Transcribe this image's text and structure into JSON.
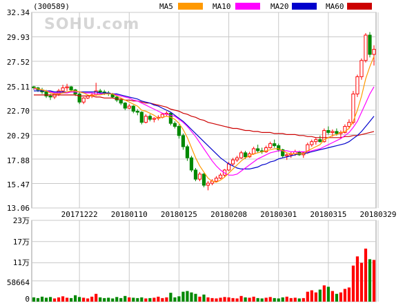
{
  "stock_code": "(300589)",
  "watermark": "SOHU.com",
  "colors": {
    "up": "#ff0000",
    "down": "#008800",
    "grid": "#c8c8c8",
    "frame": "#9a9a9a"
  },
  "chart_data": {
    "type": "candlestick",
    "price_axis": {
      "ticks": [
        "32.34",
        "29.93",
        "27.52",
        "25.11",
        "22.70",
        "20.29",
        "17.88",
        "15.47",
        "13.06"
      ],
      "ylim": [
        13.06,
        32.34
      ]
    },
    "volume_axis": {
      "ticks": [
        "23万",
        "17万",
        "11万",
        "58664",
        "0"
      ],
      "tick_values": [
        230000,
        170000,
        110000,
        58664,
        0
      ],
      "ylim": [
        0,
        230000
      ]
    },
    "date_labels": [
      "20171222",
      "20180110",
      "20180125",
      "20180208",
      "20180301",
      "20180315",
      "20180329"
    ],
    "date_label_index": [
      11,
      23,
      35,
      47,
      59,
      71,
      83
    ],
    "legend": [
      {
        "name": "MA5",
        "color": "#ff9900"
      },
      {
        "name": "MA10",
        "color": "#ff00ff"
      },
      {
        "name": "MA20",
        "color": "#0000cc"
      },
      {
        "name": "MA60",
        "color": "#cc0000"
      }
    ],
    "ohlc": [
      [
        25.0,
        25.1,
        24.7,
        24.9
      ],
      [
        24.9,
        25.0,
        24.5,
        24.7
      ],
      [
        24.7,
        24.9,
        24.3,
        24.5
      ],
      [
        24.5,
        24.7,
        23.9,
        24.1
      ],
      [
        24.1,
        24.3,
        23.7,
        24.0
      ],
      [
        24.0,
        24.4,
        23.8,
        24.3
      ],
      [
        24.3,
        24.8,
        24.1,
        24.6
      ],
      [
        24.6,
        25.2,
        24.4,
        24.9
      ],
      [
        24.9,
        25.3,
        24.6,
        25.0
      ],
      [
        25.0,
        25.1,
        24.5,
        24.7
      ],
      [
        24.7,
        24.8,
        24.1,
        24.3
      ],
      [
        24.3,
        24.5,
        23.3,
        23.5
      ],
      [
        23.5,
        24.0,
        23.3,
        23.9
      ],
      [
        23.9,
        24.2,
        23.8,
        24.1
      ],
      [
        24.1,
        24.4,
        23.9,
        24.2
      ],
      [
        24.2,
        25.4,
        24.1,
        24.6
      ],
      [
        24.6,
        24.8,
        24.4,
        24.5
      ],
      [
        24.5,
        24.7,
        24.2,
        24.4
      ],
      [
        24.4,
        24.6,
        24.1,
        24.3
      ],
      [
        24.3,
        24.4,
        23.9,
        24.0
      ],
      [
        24.0,
        24.1,
        23.5,
        23.7
      ],
      [
        23.7,
        23.8,
        23.2,
        23.4
      ],
      [
        23.4,
        23.5,
        22.7,
        22.9
      ],
      [
        22.9,
        23.3,
        22.8,
        23.1
      ],
      [
        23.1,
        23.2,
        22.4,
        22.6
      ],
      [
        22.6,
        22.8,
        22.2,
        22.5
      ],
      [
        22.5,
        22.6,
        21.3,
        21.5
      ],
      [
        21.5,
        22.3,
        21.4,
        22.1
      ],
      [
        22.1,
        22.3,
        21.6,
        21.8
      ],
      [
        21.8,
        22.0,
        21.5,
        21.9
      ],
      [
        21.9,
        22.2,
        21.7,
        22.0
      ],
      [
        22.0,
        22.4,
        21.9,
        22.3
      ],
      [
        22.3,
        22.6,
        22.1,
        22.4
      ],
      [
        22.4,
        22.5,
        21.2,
        21.4
      ],
      [
        21.4,
        21.6,
        20.9,
        21.1
      ],
      [
        21.1,
        21.3,
        19.9,
        20.2
      ],
      [
        20.2,
        20.4,
        18.8,
        19.1
      ],
      [
        19.1,
        19.3,
        17.7,
        18.0
      ],
      [
        18.0,
        18.2,
        16.6,
        16.8
      ],
      [
        16.8,
        17.0,
        15.7,
        15.9
      ],
      [
        15.9,
        16.6,
        15.7,
        16.4
      ],
      [
        16.4,
        16.5,
        15.1,
        15.3
      ],
      [
        15.3,
        15.7,
        14.8,
        15.5
      ],
      [
        15.5,
        15.9,
        15.3,
        15.7
      ],
      [
        15.7,
        16.2,
        15.6,
        16.0
      ],
      [
        16.0,
        16.5,
        15.9,
        16.3
      ],
      [
        16.3,
        16.9,
        16.1,
        16.8
      ],
      [
        16.8,
        17.6,
        16.7,
        17.4
      ],
      [
        17.4,
        18.0,
        17.2,
        17.8
      ],
      [
        17.8,
        18.2,
        17.6,
        18.0
      ],
      [
        18.0,
        18.7,
        17.9,
        18.5
      ],
      [
        18.5,
        18.7,
        17.9,
        18.1
      ],
      [
        18.1,
        18.6,
        18.0,
        18.4
      ],
      [
        18.4,
        19.1,
        18.3,
        18.9
      ],
      [
        18.9,
        19.3,
        18.5,
        18.7
      ],
      [
        18.7,
        19.0,
        18.4,
        18.6
      ],
      [
        18.6,
        19.2,
        18.5,
        19.0
      ],
      [
        19.0,
        19.6,
        18.9,
        19.4
      ],
      [
        19.4,
        19.8,
        19.0,
        19.2
      ],
      [
        19.2,
        19.4,
        18.6,
        18.8
      ],
      [
        18.8,
        18.9,
        18.0,
        18.2
      ],
      [
        18.2,
        18.5,
        17.8,
        18.3
      ],
      [
        18.3,
        18.6,
        18.0,
        18.4
      ],
      [
        18.4,
        18.8,
        18.2,
        18.6
      ],
      [
        18.6,
        18.7,
        18.2,
        18.3
      ],
      [
        18.3,
        18.6,
        18.0,
        18.5
      ],
      [
        18.5,
        19.5,
        18.4,
        19.3
      ],
      [
        19.3,
        19.8,
        19.1,
        19.6
      ],
      [
        19.6,
        20.0,
        19.3,
        19.8
      ],
      [
        19.8,
        20.2,
        19.5,
        19.6
      ],
      [
        19.6,
        20.9,
        19.5,
        20.7
      ],
      [
        20.7,
        21.1,
        20.3,
        20.5
      ],
      [
        20.5,
        20.8,
        20.1,
        20.6
      ],
      [
        20.6,
        20.9,
        20.2,
        20.4
      ],
      [
        20.4,
        20.7,
        20.0,
        20.5
      ],
      [
        20.5,
        21.3,
        20.4,
        21.1
      ],
      [
        21.1,
        21.8,
        20.9,
        21.5
      ],
      [
        21.5,
        24.6,
        21.3,
        24.3
      ],
      [
        24.3,
        26.2,
        24.0,
        26.0
      ],
      [
        26.0,
        27.8,
        25.7,
        27.6
      ],
      [
        27.6,
        30.3,
        27.4,
        30.1
      ],
      [
        30.1,
        30.4,
        27.9,
        28.2
      ],
      [
        28.2,
        29.1,
        27.1,
        28.7
      ]
    ],
    "ma5": [
      24.9,
      24.8,
      24.7,
      24.6,
      24.4,
      24.3,
      24.3,
      24.4,
      24.5,
      24.6,
      24.6,
      24.5,
      24.4,
      24.2,
      24.1,
      24.2,
      24.2,
      24.3,
      24.3,
      24.3,
      24.1,
      23.9,
      23.7,
      23.5,
      23.3,
      23.1,
      22.7,
      22.6,
      22.4,
      22.2,
      21.9,
      22.0,
      22.1,
      22.0,
      21.8,
      21.4,
      20.8,
      20.0,
      19.0,
      18.0,
      17.2,
      16.6,
      16.0,
      15.7,
      15.6,
      15.8,
      16.1,
      16.5,
      16.9,
      17.3,
      17.7,
      18.0,
      18.2,
      18.4,
      18.5,
      18.6,
      18.7,
      18.8,
      18.9,
      18.9,
      18.7,
      18.5,
      18.4,
      18.4,
      18.4,
      18.4,
      18.7,
      18.9,
      19.1,
      19.3,
      19.8,
      20.0,
      20.2,
      20.3,
      20.5,
      20.6,
      20.9,
      21.6,
      22.7,
      24.1,
      25.8,
      27.0,
      28.0
    ],
    "ma10": [
      24.8,
      24.8,
      24.7,
      24.6,
      24.5,
      24.4,
      24.4,
      24.4,
      24.4,
      24.5,
      24.5,
      24.5,
      24.4,
      24.4,
      24.4,
      24.3,
      24.3,
      24.3,
      24.3,
      24.3,
      24.2,
      24.1,
      24.0,
      23.9,
      23.7,
      23.6,
      23.4,
      23.2,
      23.0,
      22.8,
      22.6,
      22.4,
      22.3,
      22.2,
      22.1,
      21.8,
      21.5,
      21.1,
      20.6,
      20.1,
      19.5,
      18.9,
      18.3,
      17.7,
      17.2,
      16.8,
      16.5,
      16.3,
      16.3,
      16.4,
      16.7,
      17.0,
      17.3,
      17.6,
      17.9,
      18.1,
      18.3,
      18.5,
      18.6,
      18.7,
      18.7,
      18.7,
      18.6,
      18.6,
      18.6,
      18.6,
      18.6,
      18.7,
      18.8,
      18.9,
      19.1,
      19.3,
      19.5,
      19.7,
      19.9,
      20.2,
      20.5,
      21.0,
      21.6,
      22.5,
      23.4,
      24.3,
      25.0
    ],
    "ma20": [
      24.6,
      24.6,
      24.6,
      24.6,
      24.6,
      24.5,
      24.5,
      24.5,
      24.5,
      24.5,
      24.5,
      24.5,
      24.5,
      24.5,
      24.5,
      24.5,
      24.4,
      24.4,
      24.4,
      24.3,
      24.3,
      24.2,
      24.1,
      24.0,
      23.9,
      23.8,
      23.6,
      23.5,
      23.4,
      23.2,
      23.1,
      22.9,
      22.7,
      22.5,
      22.2,
      21.9,
      21.6,
      21.2,
      20.8,
      20.4,
      20.0,
      19.6,
      19.2,
      18.8,
      18.4,
      18.0,
      17.7,
      17.4,
      17.2,
      17.0,
      16.9,
      16.9,
      16.9,
      17.0,
      17.1,
      17.3,
      17.4,
      17.6,
      17.7,
      17.9,
      18.0,
      18.1,
      18.2,
      18.3,
      18.4,
      18.4,
      18.5,
      18.6,
      18.7,
      18.8,
      18.9,
      19.0,
      19.1,
      19.2,
      19.3,
      19.4,
      19.6,
      19.9,
      20.2,
      20.6,
      21.1,
      21.6,
      22.1
    ],
    "ma60": [
      24.2,
      24.2,
      24.2,
      24.2,
      24.2,
      24.2,
      24.2,
      24.2,
      24.2,
      24.2,
      24.2,
      24.1,
      24.1,
      24.1,
      24.1,
      24.0,
      24.0,
      23.9,
      23.9,
      23.9,
      23.8,
      23.8,
      23.7,
      23.7,
      23.6,
      23.6,
      23.5,
      23.4,
      23.4,
      23.3,
      23.2,
      23.1,
      23.0,
      22.8,
      22.7,
      22.6,
      22.4,
      22.3,
      22.1,
      22.0,
      21.8,
      21.7,
      21.5,
      21.4,
      21.3,
      21.2,
      21.1,
      21.0,
      20.9,
      20.9,
      20.8,
      20.7,
      20.7,
      20.6,
      20.6,
      20.5,
      20.5,
      20.5,
      20.4,
      20.4,
      20.4,
      20.3,
      20.3,
      20.3,
      20.2,
      20.2,
      20.1,
      20.1,
      20.0,
      20.0,
      20.0,
      20.0,
      20.0,
      20.0,
      20.0,
      20.1,
      20.1,
      20.2,
      20.2,
      20.3,
      20.4,
      20.5,
      20.6
    ],
    "volume": [
      12000,
      10000,
      14000,
      11000,
      13000,
      9000,
      12000,
      15000,
      11000,
      10000,
      18000,
      13000,
      11000,
      9000,
      14000,
      22000,
      12000,
      10000,
      11000,
      9000,
      13000,
      10000,
      16000,
      12000,
      11000,
      10000,
      12000,
      9000,
      10000,
      11000,
      14000,
      10000,
      12000,
      25000,
      12000,
      15000,
      28000,
      30000,
      26000,
      22000,
      14000,
      20000,
      12000,
      10000,
      9000,
      11000,
      13000,
      12000,
      10000,
      9000,
      16000,
      12000,
      11000,
      14000,
      10000,
      9000,
      11000,
      13000,
      10000,
      9000,
      12000,
      14000,
      10000,
      11000,
      9000,
      10000,
      28000,
      32000,
      26000,
      34000,
      46000,
      42000,
      30000,
      22000,
      26000,
      36000,
      40000,
      102000,
      128000,
      110000,
      150000,
      120000,
      118000
    ]
  }
}
